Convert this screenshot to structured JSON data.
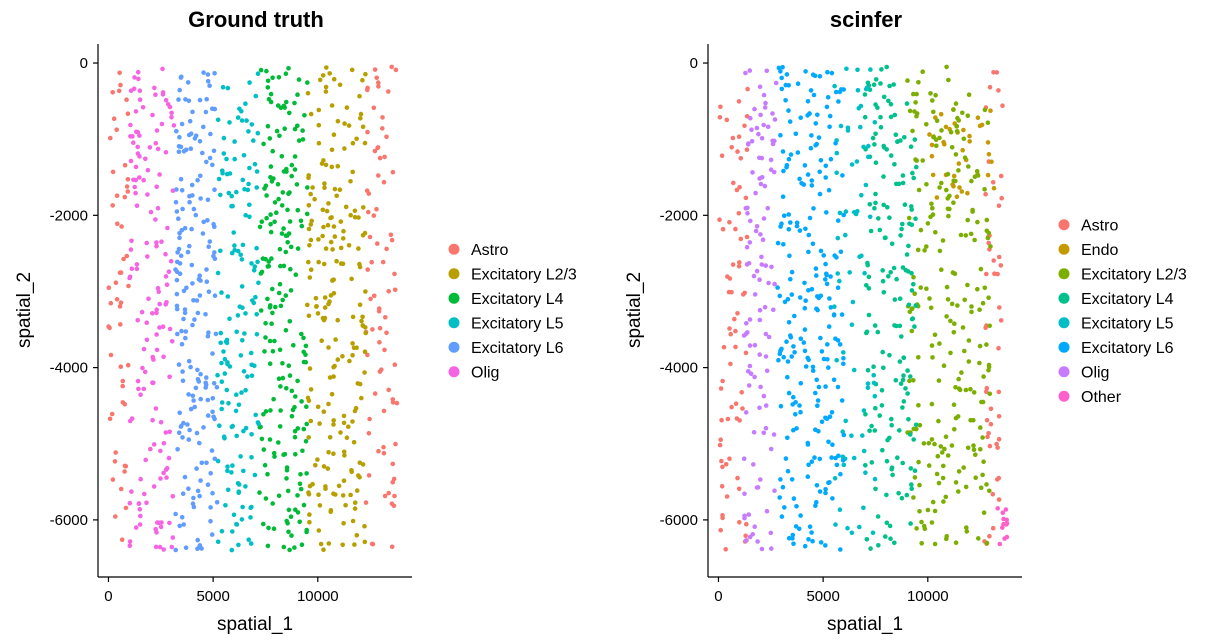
{
  "chart_data": [
    {
      "type": "scatter",
      "title": "Ground truth",
      "xlabel": "spatial_1",
      "ylabel": "spatial_2",
      "xlim": [
        -500,
        14500
      ],
      "ylim": [
        -6750,
        250
      ],
      "x_ticks": [
        0,
        5000,
        10000
      ],
      "y_ticks": [
        0,
        -2000,
        -4000,
        -6000
      ],
      "x_tick_labels": [
        "0",
        "5000",
        "10000"
      ],
      "y_tick_labels": [
        "0",
        "-2000",
        "-4000",
        "-6000"
      ],
      "grid": false,
      "legend_position": "right",
      "series": [
        {
          "name": "Astro",
          "color": "#F8766D",
          "bands": [
            [
              0,
              1000
            ],
            [
              12300,
              13800
            ]
          ],
          "count": 130
        },
        {
          "name": "Excitatory L2/3",
          "color": "#B79F00",
          "bands": [
            [
              9500,
              12300
            ]
          ],
          "count": 210
        },
        {
          "name": "Excitatory L4",
          "color": "#00BA38",
          "bands": [
            [
              7200,
              9500
            ]
          ],
          "count": 200
        },
        {
          "name": "Excitatory L5",
          "color": "#00BFC4",
          "bands": [
            [
              5200,
              7200
            ]
          ],
          "count": 150
        },
        {
          "name": "Excitatory L6",
          "color": "#619CFF",
          "bands": [
            [
              3200,
              5200
            ]
          ],
          "count": 190
        },
        {
          "name": "Olig",
          "color": "#F564E3",
          "bands": [
            [
              1000,
              3200
            ]
          ],
          "count": 150
        }
      ]
    },
    {
      "type": "scatter",
      "title": "scinfer",
      "xlabel": "spatial_1",
      "ylabel": "spatial_2",
      "xlim": [
        -500,
        14500
      ],
      "ylim": [
        -6750,
        250
      ],
      "x_ticks": [
        0,
        5000,
        10000
      ],
      "y_ticks": [
        0,
        -2000,
        -4000,
        -6000
      ],
      "x_tick_labels": [
        "0",
        "5000",
        "10000"
      ],
      "y_tick_labels": [
        "0",
        "-2000",
        "-4000",
        "-6000"
      ],
      "grid": false,
      "legend_position": "right",
      "series": [
        {
          "name": "Astro",
          "color": "#F8766D",
          "bands": [
            [
              0,
              1400
            ],
            [
              12700,
              13600
            ]
          ],
          "count": 120
        },
        {
          "name": "Endo",
          "color": "#C49A00",
          "bands": [
            [
              10000,
              13300
            ]
          ],
          "count": 40,
          "yrange": [
            -1800,
            -600
          ]
        },
        {
          "name": "Excitatory L2/3",
          "color": "#7CAE00",
          "bands": [
            [
              9000,
              13000
            ]
          ],
          "count": 230
        },
        {
          "name": "Excitatory L4",
          "color": "#00C08B",
          "bands": [
            [
              7000,
              9500
            ]
          ],
          "count": 170
        },
        {
          "name": "Excitatory L5",
          "color": "#00BFC4",
          "bands": [
            [
              5500,
              7500
            ]
          ],
          "count": 70
        },
        {
          "name": "Excitatory L6",
          "color": "#00A9FF",
          "bands": [
            [
              2800,
              6000
            ]
          ],
          "count": 240
        },
        {
          "name": "Olig",
          "color": "#C77CFF",
          "bands": [
            [
              1200,
              2800
            ]
          ],
          "count": 110
        },
        {
          "name": "Other",
          "color": "#FF61CC",
          "bands": [
            [
              13300,
              13800
            ]
          ],
          "count": 12,
          "yrange": [
            -6400,
            -5800
          ]
        }
      ]
    }
  ]
}
